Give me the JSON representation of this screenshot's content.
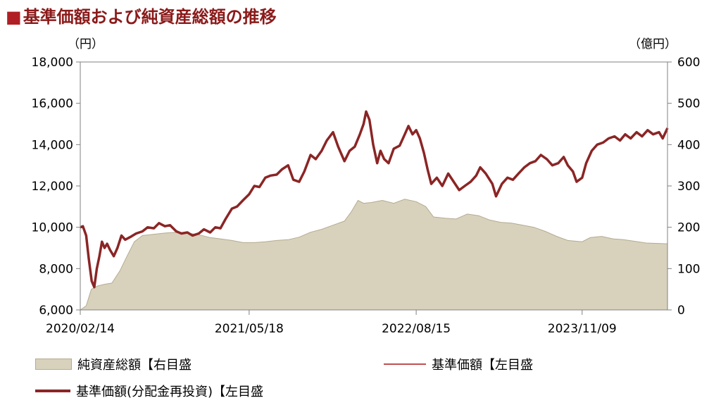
{
  "title": "基準価額および純資産総額の推移",
  "title_marker": "■",
  "colors": {
    "title": "#8b1a1a",
    "area_fill": "#d8d2bd",
    "area_stroke": "#b3ab90",
    "nav_line": "#c0504d",
    "reinvest_line": "#8b2525"
  },
  "chart_data": {
    "type": "line",
    "left_unit": "（円）",
    "right_unit": "（億円）",
    "y_left_range": [
      6000,
      18000
    ],
    "y_right_range": [
      0,
      600
    ],
    "y_left_ticks": [
      "18,000",
      "16,000",
      "14,000",
      "12,000",
      "10,000",
      "8,000",
      "6,000"
    ],
    "y_right_ticks": [
      "600",
      "500",
      "400",
      "300",
      "200",
      "100",
      "0"
    ],
    "x_ticks": [
      "2020/02/14",
      "2021/05/18",
      "2022/08/15",
      "2023/11/09"
    ],
    "x_range": [
      "2020/02/14",
      "2024/06/28"
    ],
    "grid": false,
    "legend_position": "bottom",
    "series": [
      {
        "name": "純資産総額【右目盛",
        "axis": "right",
        "style": "area",
        "points": [
          [
            "2020/02/14",
            0
          ],
          [
            "2020/03/01",
            10
          ],
          [
            "2020/03/15",
            50
          ],
          [
            "2020/04/01",
            58
          ],
          [
            "2020/04/20",
            62
          ],
          [
            "2020/05/10",
            65
          ],
          [
            "2020/06/01",
            95
          ],
          [
            "2020/06/20",
            130
          ],
          [
            "2020/07/10",
            165
          ],
          [
            "2020/08/01",
            180
          ],
          [
            "2020/09/01",
            183
          ],
          [
            "2020/10/01",
            186
          ],
          [
            "2020/11/01",
            188
          ],
          [
            "2020/12/01",
            186
          ],
          [
            "2021/01/01",
            182
          ],
          [
            "2021/02/01",
            175
          ],
          [
            "2021/03/01",
            172
          ],
          [
            "2021/04/01",
            168
          ],
          [
            "2021/05/01",
            163
          ],
          [
            "2021/06/01",
            163
          ],
          [
            "2021/07/01",
            165
          ],
          [
            "2021/08/01",
            168
          ],
          [
            "2021/09/01",
            170
          ],
          [
            "2021/10/01",
            176
          ],
          [
            "2021/11/01",
            188
          ],
          [
            "2021/12/01",
            195
          ],
          [
            "2022/01/01",
            205
          ],
          [
            "2022/02/01",
            215
          ],
          [
            "2022/02/20",
            238
          ],
          [
            "2022/03/10",
            265
          ],
          [
            "2022/03/25",
            258
          ],
          [
            "2022/04/15",
            260
          ],
          [
            "2022/05/15",
            265
          ],
          [
            "2022/06/15",
            258
          ],
          [
            "2022/07/15",
            268
          ],
          [
            "2022/08/15",
            262
          ],
          [
            "2022/09/10",
            250
          ],
          [
            "2022/10/01",
            225
          ],
          [
            "2022/11/01",
            222
          ],
          [
            "2022/12/01",
            220
          ],
          [
            "2023/01/01",
            232
          ],
          [
            "2023/02/01",
            228
          ],
          [
            "2023/03/01",
            218
          ],
          [
            "2023/04/01",
            212
          ],
          [
            "2023/05/01",
            210
          ],
          [
            "2023/06/01",
            205
          ],
          [
            "2023/07/01",
            200
          ],
          [
            "2023/08/01",
            190
          ],
          [
            "2023/09/01",
            178
          ],
          [
            "2023/10/01",
            168
          ],
          [
            "2023/11/09",
            165
          ],
          [
            "2023/12/01",
            175
          ],
          [
            "2024/01/01",
            178
          ],
          [
            "2024/02/01",
            172
          ],
          [
            "2024/03/01",
            170
          ],
          [
            "2024/04/01",
            166
          ],
          [
            "2024/05/01",
            162
          ],
          [
            "2024/06/28",
            160
          ]
        ]
      },
      {
        "name": "基準価額【左目盛",
        "axis": "left",
        "style": "thin",
        "points": []
      },
      {
        "name": "基準価額(分配金再投資)【左目盛",
        "axis": "left",
        "style": "thick",
        "points": [
          [
            "2020/02/14",
            10000
          ],
          [
            "2020/02/21",
            10050
          ],
          [
            "2020/03/01",
            9600
          ],
          [
            "2020/03/08",
            8500
          ],
          [
            "2020/03/16",
            7400
          ],
          [
            "2020/03/23",
            7100
          ],
          [
            "2020/03/30",
            8000
          ],
          [
            "2020/04/06",
            8600
          ],
          [
            "2020/04/13",
            9300
          ],
          [
            "2020/04/20",
            9000
          ],
          [
            "2020/04/27",
            9200
          ],
          [
            "2020/05/05",
            8900
          ],
          [
            "2020/05/15",
            8600
          ],
          [
            "2020/05/25",
            9000
          ],
          [
            "2020/06/05",
            9600
          ],
          [
            "2020/06/15",
            9400
          ],
          [
            "2020/07/01",
            9550
          ],
          [
            "2020/07/15",
            9700
          ],
          [
            "2020/08/01",
            9800
          ],
          [
            "2020/08/15",
            10000
          ],
          [
            "2020/09/01",
            9950
          ],
          [
            "2020/09/15",
            10200
          ],
          [
            "2020/10/01",
            10050
          ],
          [
            "2020/10/15",
            10100
          ],
          [
            "2020/11/01",
            9800
          ],
          [
            "2020/11/15",
            9700
          ],
          [
            "2020/12/01",
            9750
          ],
          [
            "2020/12/15",
            9600
          ],
          [
            "2021/01/01",
            9700
          ],
          [
            "2021/01/15",
            9900
          ],
          [
            "2021/02/01",
            9750
          ],
          [
            "2021/02/15",
            10000
          ],
          [
            "2021/03/01",
            9950
          ],
          [
            "2021/03/15",
            10400
          ],
          [
            "2021/04/01",
            10900
          ],
          [
            "2021/04/15",
            11000
          ],
          [
            "2021/05/01",
            11300
          ],
          [
            "2021/05/18",
            11600
          ],
          [
            "2021/06/01",
            12000
          ],
          [
            "2021/06/15",
            11950
          ],
          [
            "2021/07/01",
            12400
          ],
          [
            "2021/07/15",
            12500
          ],
          [
            "2021/08/01",
            12550
          ],
          [
            "2021/08/15",
            12800
          ],
          [
            "2021/09/01",
            13000
          ],
          [
            "2021/09/15",
            12300
          ],
          [
            "2021/10/01",
            12200
          ],
          [
            "2021/10/15",
            12700
          ],
          [
            "2021/11/01",
            13500
          ],
          [
            "2021/11/15",
            13300
          ],
          [
            "2021/12/01",
            13700
          ],
          [
            "2021/12/15",
            14200
          ],
          [
            "2022/01/01",
            14600
          ],
          [
            "2022/01/15",
            13900
          ],
          [
            "2022/02/01",
            13200
          ],
          [
            "2022/02/15",
            13700
          ],
          [
            "2022/03/01",
            13900
          ],
          [
            "2022/03/15",
            14500
          ],
          [
            "2022/03/25",
            15000
          ],
          [
            "2022/04/01",
            15600
          ],
          [
            "2022/04/10",
            15200
          ],
          [
            "2022/04/20",
            14000
          ],
          [
            "2022/05/01",
            13100
          ],
          [
            "2022/05/10",
            13700
          ],
          [
            "2022/05/20",
            13300
          ],
          [
            "2022/06/01",
            13100
          ],
          [
            "2022/06/15",
            13800
          ],
          [
            "2022/07/01",
            13950
          ],
          [
            "2022/07/15",
            14500
          ],
          [
            "2022/07/25",
            14900
          ],
          [
            "2022/08/05",
            14500
          ],
          [
            "2022/08/15",
            14700
          ],
          [
            "2022/08/25",
            14300
          ],
          [
            "2022/09/05",
            13600
          ],
          [
            "2022/09/15",
            12800
          ],
          [
            "2022/09/25",
            12100
          ],
          [
            "2022/10/10",
            12400
          ],
          [
            "2022/10/25",
            12000
          ],
          [
            "2022/11/10",
            12600
          ],
          [
            "2022/11/25",
            12200
          ],
          [
            "2022/12/10",
            11800
          ],
          [
            "2022/12/25",
            12000
          ],
          [
            "2023/01/10",
            12200
          ],
          [
            "2023/01/25",
            12500
          ],
          [
            "2023/02/05",
            12900
          ],
          [
            "2023/02/20",
            12600
          ],
          [
            "2023/03/10",
            12100
          ],
          [
            "2023/03/20",
            11500
          ],
          [
            "2023/04/05",
            12100
          ],
          [
            "2023/04/20",
            12400
          ],
          [
            "2023/05/05",
            12300
          ],
          [
            "2023/05/20",
            12600
          ],
          [
            "2023/06/05",
            12900
          ],
          [
            "2023/06/20",
            13100
          ],
          [
            "2023/07/05",
            13200
          ],
          [
            "2023/07/20",
            13500
          ],
          [
            "2023/08/05",
            13300
          ],
          [
            "2023/08/20",
            13000
          ],
          [
            "2023/09/05",
            13100
          ],
          [
            "2023/09/20",
            13400
          ],
          [
            "2023/10/01",
            13000
          ],
          [
            "2023/10/15",
            12700
          ],
          [
            "2023/10/25",
            12200
          ],
          [
            "2023/11/09",
            12400
          ],
          [
            "2023/11/20",
            13100
          ],
          [
            "2023/12/05",
            13700
          ],
          [
            "2023/12/20",
            14000
          ],
          [
            "2024/01/05",
            14100
          ],
          [
            "2024/01/20",
            14300
          ],
          [
            "2024/02/05",
            14400
          ],
          [
            "2024/02/20",
            14200
          ],
          [
            "2024/03/05",
            14500
          ],
          [
            "2024/03/20",
            14300
          ],
          [
            "2024/04/05",
            14600
          ],
          [
            "2024/04/20",
            14400
          ],
          [
            "2024/05/05",
            14700
          ],
          [
            "2024/05/20",
            14500
          ],
          [
            "2024/06/05",
            14600
          ],
          [
            "2024/06/15",
            14300
          ],
          [
            "2024/06/28",
            14800
          ]
        ]
      }
    ]
  },
  "legend": {
    "area_label": "純資産総額【右目盛",
    "nav_label": "基準価額【左目盛",
    "reinvest_label": "基準価額(分配金再投資)【左目盛",
    "position": "bottom"
  }
}
